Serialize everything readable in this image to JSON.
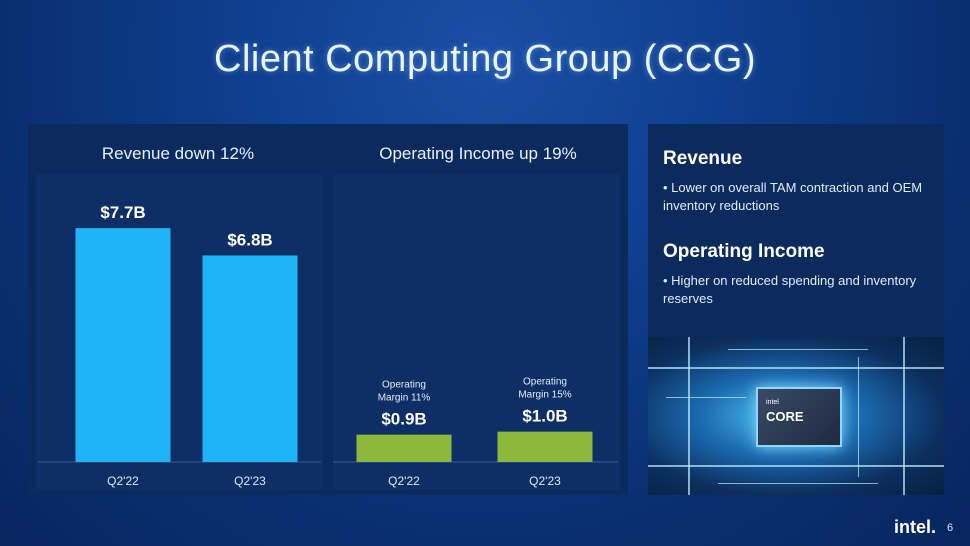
{
  "title": "Client Computing Group (CCG)",
  "chart_data": [
    {
      "type": "bar",
      "title": "Revenue down 12%",
      "categories": [
        "Q2'22",
        "Q2'23"
      ],
      "values": [
        7.7,
        6.8
      ],
      "data_labels": [
        "$7.7B",
        "$6.8B"
      ],
      "ylim": [
        0,
        9
      ],
      "bar_color": "#1eb4f5"
    },
    {
      "type": "bar",
      "title": "Operating Income up 19%",
      "categories": [
        "Q2'22",
        "Q2'23"
      ],
      "values": [
        0.9,
        1.0
      ],
      "data_labels": [
        "$0.9B",
        "$1.0B"
      ],
      "annotations": [
        [
          "Operating",
          "Margin 11%"
        ],
        [
          "Operating",
          "Margin 15%"
        ]
      ],
      "ylim": [
        0,
        9
      ],
      "bar_color": "#8cb83c"
    }
  ],
  "right_panel": {
    "revenue_heading": "Revenue",
    "revenue_bullet": "• Lower on overall TAM contraction and OEM inventory reductions",
    "income_heading": "Operating Income",
    "income_bullet": "• Higher on reduced spending and inventory reserves"
  },
  "chip": {
    "brand": "intel",
    "label": "CORE"
  },
  "footer": {
    "logo": "intel.",
    "page": "6"
  }
}
